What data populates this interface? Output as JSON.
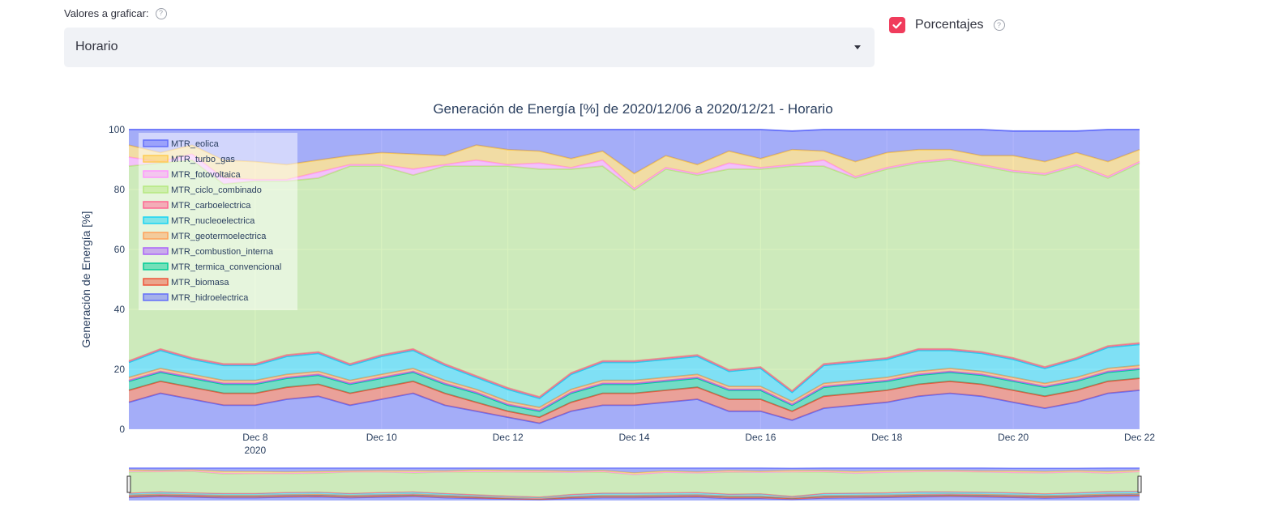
{
  "controls": {
    "select_label": "Valores a graficar:",
    "select_value": "Horario",
    "checkbox_label": "Porcentajes",
    "checkbox_checked": true,
    "help_glyph": "?",
    "accent_color": "#f03c5c"
  },
  "chart_data": {
    "type": "area",
    "stacked": true,
    "normalized_percent": true,
    "title": "Generación de Energía [%] de 2020/12/06 a 2020/12/21 - Horario",
    "ylabel": "Generación de Energía [%]",
    "xlabel": "",
    "ylim": [
      0,
      100
    ],
    "y_ticks": [
      0,
      20,
      40,
      60,
      80,
      100
    ],
    "x_ticks": [
      {
        "x": 8,
        "label": "Dec 8",
        "sub": "2020"
      },
      {
        "x": 10,
        "label": "Dec 10",
        "sub": ""
      },
      {
        "x": 12,
        "label": "Dec 12",
        "sub": ""
      },
      {
        "x": 14,
        "label": "Dec 14",
        "sub": ""
      },
      {
        "x": 16,
        "label": "Dec 16",
        "sub": ""
      },
      {
        "x": 18,
        "label": "Dec 18",
        "sub": ""
      },
      {
        "x": 20,
        "label": "Dec 20",
        "sub": ""
      },
      {
        "x": 22,
        "label": "Dec 22",
        "sub": ""
      }
    ],
    "xlim": [
      6,
      22
    ],
    "legend_position": "top-left",
    "grid": true,
    "range_slider": true,
    "x": [
      6.0,
      6.5,
      7.0,
      7.5,
      8.0,
      8.5,
      9.0,
      9.5,
      10.0,
      10.5,
      11.0,
      11.5,
      12.0,
      12.5,
      13.0,
      13.5,
      14.0,
      14.5,
      15.0,
      15.5,
      16.0,
      16.5,
      17.0,
      17.5,
      18.0,
      18.5,
      19.0,
      19.5,
      20.0,
      20.5,
      21.0,
      21.5,
      22.0
    ],
    "series": [
      {
        "name": "MTR_hidroelectrica",
        "color": "#636efa",
        "values": [
          9,
          12,
          10,
          8,
          8,
          10,
          11,
          8,
          10,
          12,
          8,
          6,
          4,
          2,
          6,
          8,
          8,
          9,
          10,
          6,
          6,
          3,
          7,
          8,
          9,
          11,
          12,
          11,
          9,
          7,
          9,
          12,
          13
        ]
      },
      {
        "name": "MTR_biomasa",
        "color": "#ef553b",
        "values": [
          4,
          4,
          4,
          4,
          4,
          4,
          4,
          4,
          4,
          4,
          4,
          3,
          2,
          2,
          3,
          4,
          4,
          4,
          4,
          4,
          4,
          3,
          4,
          4,
          4,
          4,
          4,
          4,
          4,
          4,
          4,
          4,
          4
        ]
      },
      {
        "name": "MTR_termica_convencional",
        "color": "#00cc96",
        "values": [
          3,
          3,
          3,
          3,
          3,
          3,
          3,
          3,
          3,
          3,
          3,
          3,
          2,
          2,
          3,
          3,
          3,
          3,
          3,
          3,
          3,
          2,
          3,
          3,
          3,
          3,
          3,
          3,
          3,
          3,
          3,
          3,
          3
        ]
      },
      {
        "name": "MTR_combustion_interna",
        "color": "#ab63fa",
        "values": [
          0.3,
          0.3,
          0.3,
          0.3,
          0.3,
          0.3,
          0.3,
          0.3,
          0.3,
          0.3,
          0.3,
          0.3,
          0.3,
          0.3,
          0.3,
          0.3,
          0.3,
          0.3,
          0.3,
          0.3,
          0.3,
          0.3,
          0.3,
          0.3,
          0.3,
          0.3,
          0.3,
          0.3,
          0.3,
          0.3,
          0.3,
          0.3,
          0.3
        ]
      },
      {
        "name": "MTR_geotermoelectrica",
        "color": "#ffa15a",
        "values": [
          1,
          1,
          1,
          1,
          1,
          1,
          1,
          1,
          1,
          1,
          1,
          1,
          1,
          1,
          1,
          1,
          1,
          1,
          1,
          1,
          1,
          1,
          1,
          1,
          1,
          1,
          1,
          1,
          1,
          1,
          1,
          1,
          1
        ]
      },
      {
        "name": "MTR_nucleoelectrica",
        "color": "#19d3f3",
        "values": [
          5,
          6,
          5,
          5,
          5,
          6,
          6,
          5,
          6,
          6,
          5,
          4,
          4,
          3,
          5,
          6,
          6,
          6,
          6,
          5,
          6,
          3,
          6,
          6,
          6,
          7,
          6,
          6,
          6,
          5,
          6,
          7,
          7
        ]
      },
      {
        "name": "MTR_carboelectrica",
        "color": "#ff6692",
        "values": [
          0.5,
          0.5,
          0.5,
          0.5,
          0.5,
          0.5,
          0.5,
          0.5,
          0.5,
          0.5,
          0.5,
          0.5,
          0.5,
          0.5,
          0.5,
          0.5,
          0.5,
          0.5,
          0.5,
          0.5,
          0.5,
          0.5,
          0.5,
          0.5,
          0.5,
          0.5,
          0.5,
          0.5,
          0.5,
          0.5,
          0.5,
          0.5,
          0.5
        ]
      },
      {
        "name": "MTR_ciclo_combinado",
        "color": "#b6e880",
        "values": [
          65,
          62,
          66,
          60,
          61,
          58,
          58,
          66,
          63,
          58,
          66,
          70,
          74,
          76,
          68,
          65,
          57,
          63,
          60,
          67,
          66,
          75,
          66,
          61,
          63,
          62,
          63,
          62,
          62,
          64,
          64,
          56,
          60
        ]
      },
      {
        "name": "MTR_fotovoltaica",
        "color": "#ff97ff",
        "values": [
          3,
          0.5,
          2,
          2,
          0.5,
          0.5,
          2,
          0.5,
          0.5,
          2,
          0.5,
          2,
          0.5,
          2,
          0.5,
          2,
          0.5,
          0.5,
          0.5,
          2,
          0.5,
          0.5,
          2,
          0.5,
          0.5,
          0.5,
          0.5,
          0.5,
          0.5,
          0.5,
          0.5,
          0.5,
          0.5
        ]
      },
      {
        "name": "MTR_turbo_gas",
        "color": "#fecb52",
        "values": [
          4,
          3,
          3,
          6,
          6,
          5,
          4,
          3,
          4,
          5,
          3,
          5,
          5,
          4,
          3,
          3,
          5,
          4,
          3,
          4,
          3,
          5,
          3,
          5,
          5,
          4,
          3,
          3,
          5,
          4,
          4,
          5,
          4
        ]
      },
      {
        "name": "MTR_eolica",
        "color": "#636efa",
        "values": [
          5.2,
          7.7,
          5.2,
          10.2,
          10.7,
          11.7,
          10.2,
          8.7,
          7.7,
          8.2,
          8.7,
          5.2,
          6.7,
          7.2,
          9.7,
          7.2,
          14.7,
          12.2,
          11.7,
          9.2,
          9.7,
          6.2,
          7.2,
          10.7,
          7.7,
          7.2,
          6.7,
          8.7,
          8.2,
          10.2,
          7.2,
          10.7,
          6.7
        ]
      }
    ]
  }
}
